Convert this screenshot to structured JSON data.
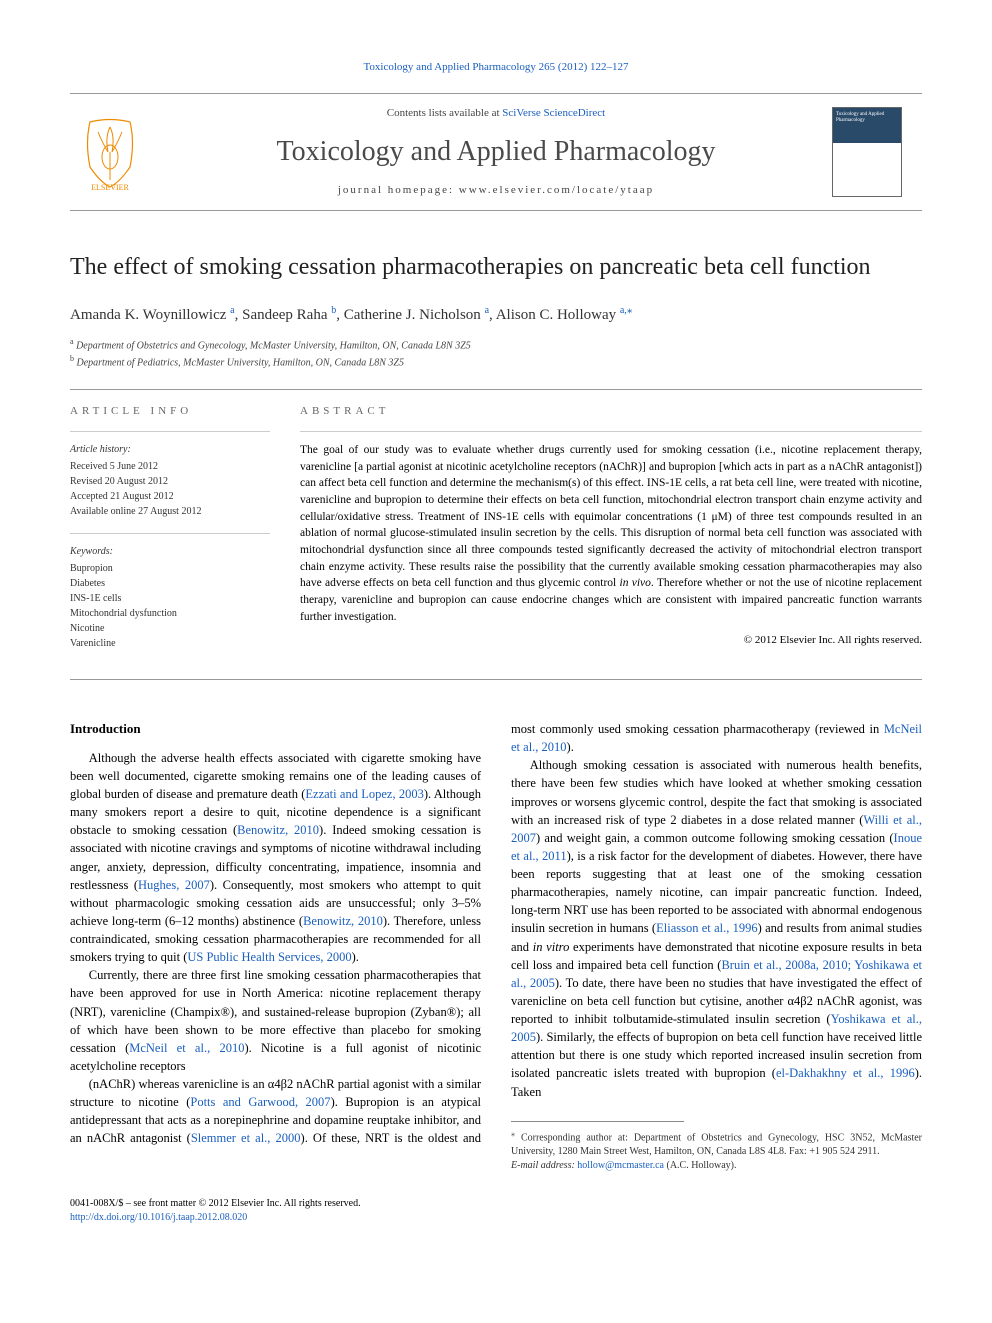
{
  "journal": {
    "top_link": "Toxicology and Applied Pharmacology 265 (2012) 122–127",
    "sciverse_prefix": "Contents lists available at ",
    "sciverse_link": "SciVerse ScienceDirect",
    "name": "Toxicology and Applied Pharmacology",
    "homepage": "journal homepage: www.elsevier.com/locate/ytaap"
  },
  "article": {
    "title": "The effect of smoking cessation pharmacotherapies on pancreatic beta cell function",
    "authors_html": "Amanda K. Woynillowicz <sup class='affil-mark'>a</sup>, Sandeep Raha <sup class='affil-mark'>b</sup>, Catherine J. Nicholson <sup class='affil-mark'>a</sup>, Alison C. Holloway <sup class='affil-mark'>a,</sup><sup class='corr-mark'>⁎</sup>",
    "affiliations": [
      {
        "mark": "a",
        "text": "Department of Obstetrics and Gynecology, McMaster University, Hamilton, ON, Canada L8N 3Z5"
      },
      {
        "mark": "b",
        "text": "Department of Pediatrics, McMaster University, Hamilton, ON, Canada L8N 3Z5"
      }
    ]
  },
  "article_info": {
    "heading": "ARTICLE INFO",
    "history_label": "Article history:",
    "history": [
      "Received 5 June 2012",
      "Revised 20 August 2012",
      "Accepted 21 August 2012",
      "Available online 27 August 2012"
    ],
    "keywords_label": "Keywords:",
    "keywords": [
      "Bupropion",
      "Diabetes",
      "INS-1E cells",
      "Mitochondrial dysfunction",
      "Nicotine",
      "Varenicline"
    ]
  },
  "abstract": {
    "heading": "ABSTRACT",
    "text": "The goal of our study was to evaluate whether drugs currently used for smoking cessation (i.e., nicotine replacement therapy, varenicline [a partial agonist at nicotinic acetylcholine receptors (nAChR)] and bupropion [which acts in part as a nAChR antagonist]) can affect beta cell function and determine the mechanism(s) of this effect. INS-1E cells, a rat beta cell line, were treated with nicotine, varenicline and bupropion to determine their effects on beta cell function, mitochondrial electron transport chain enzyme activity and cellular/oxidative stress. Treatment of INS-1E cells with equimolar concentrations (1 μM) of three test compounds resulted in an ablation of normal glucose-stimulated insulin secretion by the cells. This disruption of normal beta cell function was associated with mitochondrial dysfunction since all three compounds tested significantly decreased the activity of mitochondrial electron transport chain enzyme activity. These results raise the possibility that the currently available smoking cessation pharmacotherapies may also have adverse effects on beta cell function and thus glycemic control in vivo. Therefore whether or not the use of nicotine replacement therapy, varenicline and bupropion can cause endocrine changes which are consistent with impaired pancreatic function warrants further investigation.",
    "copyright": "© 2012 Elsevier Inc. All rights reserved."
  },
  "body": {
    "intro_heading": "Introduction",
    "paragraphs": [
      "Although the adverse health effects associated with cigarette smoking have been well documented, cigarette smoking remains one of the leading causes of global burden of disease and premature death (<span class='cite'>Ezzati and Lopez, 2003</span>). Although many smokers report a desire to quit, nicotine dependence is a significant obstacle to smoking cessation (<span class='cite'>Benowitz, 2010</span>). Indeed smoking cessation is associated with nicotine cravings and symptoms of nicotine withdrawal including anger, anxiety, depression, difficulty concentrating, impatience, insomnia and restlessness (<span class='cite'>Hughes, 2007</span>). Consequently, most smokers who attempt to quit without pharmacologic smoking cessation aids are unsuccessful; only 3–5% achieve long-term (6–12 months) abstinence (<span class='cite'>Benowitz, 2010</span>). Therefore, unless contraindicated, smoking cessation pharmacotherapies are recommended for all smokers trying to quit (<span class='cite'>US Public Health Services, 2000</span>).",
      "Currently, there are three first line smoking cessation pharmacotherapies that have been approved for use in North America: nicotine replacement therapy (NRT), varenicline (Champix®), and sustained-release bupropion (Zyban®); all of which have been shown to be more effective than placebo for smoking cessation (<span class='cite'>McNeil et al., 2010</span>). Nicotine is a full agonist of nicotinic acetylcholine receptors",
      "(nAChR) whereas varenicline is an α4β2 nAChR partial agonist with a similar structure to nicotine (<span class='cite'>Potts and Garwood, 2007</span>). Bupropion is an atypical antidepressant that acts as a norepinephrine and dopamine reuptake inhibitor, and an nAChR antagonist (<span class='cite'>Slemmer et al., 2000</span>). Of these, NRT is the oldest and most commonly used smoking cessation pharmacotherapy (reviewed in <span class='cite'>McNeil et al., 2010</span>).",
      "Although smoking cessation is associated with numerous health benefits, there have been few studies which have looked at whether smoking cessation improves or worsens glycemic control, despite the fact that smoking is associated with an increased risk of type 2 diabetes in a dose related manner (<span class='cite'>Willi et al., 2007</span>) and weight gain, a common outcome following smoking cessation (<span class='cite'>Inoue et al., 2011</span>), is a risk factor for the development of diabetes. However, there have been reports suggesting that at least one of the smoking cessation pharmacotherapies, namely nicotine, can impair pancreatic function. Indeed, long-term NRT use has been reported to be associated with abnormal endogenous insulin secretion in humans (<span class='cite'>Eliasson et al., 1996</span>) and results from animal studies and <em>in vitro</em> experiments have demonstrated that nicotine exposure results in beta cell loss and impaired beta cell function (<span class='cite'>Bruin et al., 2008a, 2010; Yoshikawa et al., 2005</span>). To date, there have been no studies that have investigated the effect of varenicline on beta cell function but cytisine, another α4β2 nAChR agonist, was reported to inhibit tolbutamide-stimulated insulin secretion (<span class='cite'>Yoshikawa et al., 2005</span>). Similarly, the effects of bupropion on beta cell function have received little attention but there is one study which reported increased insulin secretion from isolated pancreatic islets treated with bupropion (<span class='cite'>el-Dakhakhny et al., 1996</span>). Taken"
    ]
  },
  "footnotes": {
    "corr": "⁎ Corresponding author at: Department of Obstetrics and Gynecology, HSC 3N52, McMaster University, 1280 Main Street West, Hamilton, ON, Canada L8S 4L8. Fax: +1 905 524 2911.",
    "email_label": "E-mail address:",
    "email": "hollow@mcmaster.ca",
    "email_name": "(A.C. Holloway)."
  },
  "bottom": {
    "issn": "0041-008X/$ – see front matter © 2012 Elsevier Inc. All rights reserved.",
    "doi": "http://dx.doi.org/10.1016/j.taap.2012.08.020"
  },
  "colors": {
    "link": "#1a5fbf",
    "text": "#000000",
    "muted": "#666666",
    "border": "#999999",
    "elsevier_orange": "#ed8b00"
  }
}
